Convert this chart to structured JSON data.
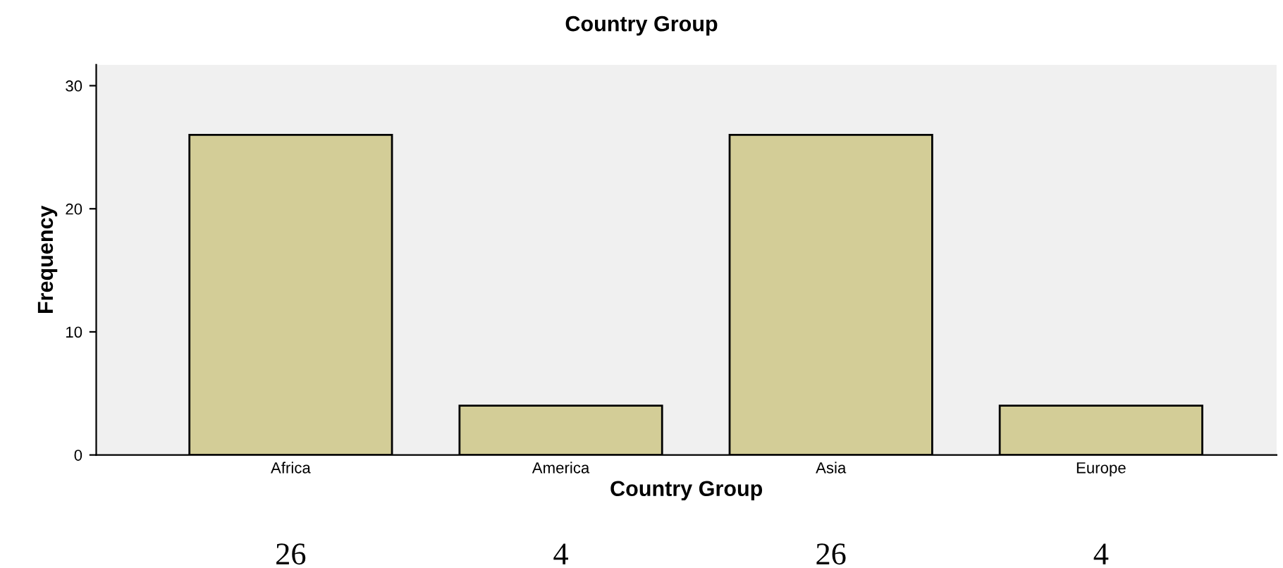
{
  "chart_data": {
    "type": "bar",
    "title": "Country Group",
    "xlabel": "Country Group",
    "ylabel": "Frequency",
    "categories": [
      "Africa",
      "America",
      "Asia",
      "Europe"
    ],
    "values": [
      26,
      4,
      26,
      4
    ],
    "color": "#d3cd97",
    "ylim": [
      0,
      31.7
    ],
    "yticks": [
      0,
      10,
      20,
      30
    ],
    "grid": false,
    "data_labels": true
  }
}
